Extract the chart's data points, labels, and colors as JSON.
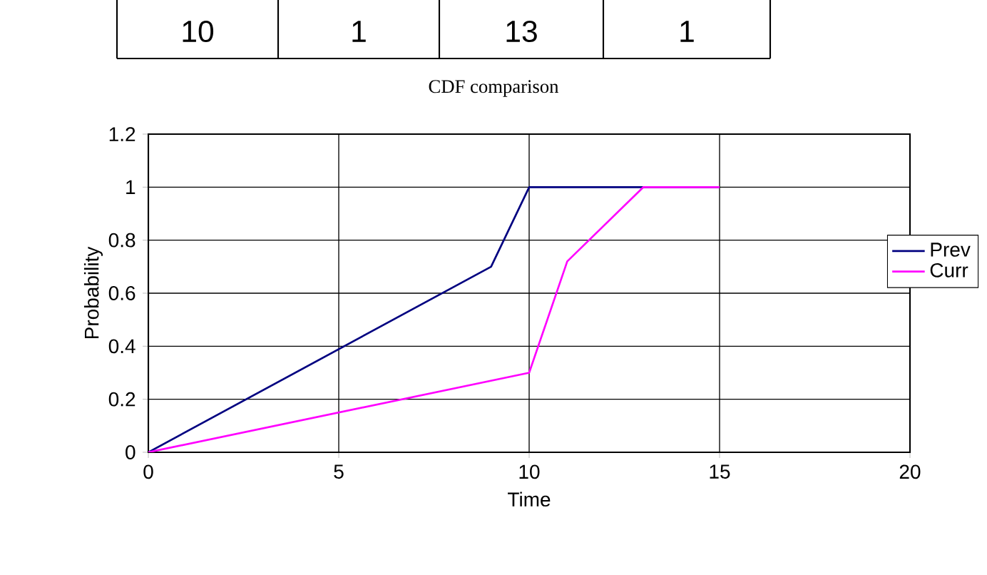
{
  "chart_data": {
    "type": "line",
    "title": "CDF comparison",
    "xlabel": "Time",
    "ylabel": "Probability",
    "annotations": [
      "10",
      "1",
      "13",
      "1"
    ],
    "series": [
      {
        "name": "Prev",
        "color": "#000080",
        "x": [
          0,
          9,
          10,
          15
        ],
        "values": [
          0,
          0.7,
          1,
          1
        ]
      },
      {
        "name": "Curr",
        "color": "#ff00ff",
        "x": [
          0,
          10,
          11,
          13,
          15
        ],
        "values": [
          0,
          0.3,
          0.72,
          1,
          1
        ]
      }
    ],
    "xlim": [
      0,
      20
    ],
    "ylim": [
      0,
      1.2
    ],
    "xticks": [
      0,
      5,
      10,
      15,
      20
    ],
    "yticks": [
      0,
      0.2,
      0.4,
      0.6,
      0.8,
      1,
      1.2
    ],
    "grid": true,
    "legend": "right",
    "marker": "none",
    "line_style": "solid"
  }
}
